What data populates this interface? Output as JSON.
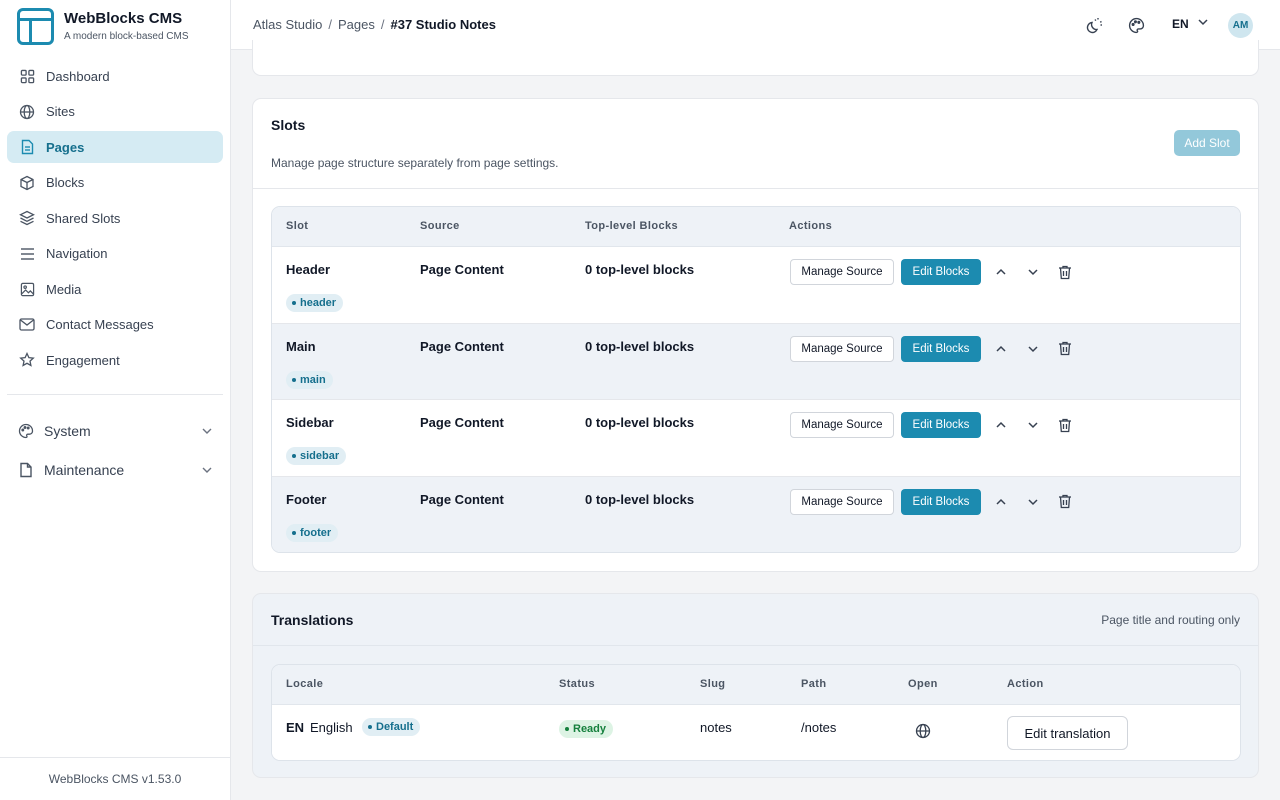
{
  "brand": {
    "title": "WebBlocks CMS",
    "subtitle": "A modern block-based CMS"
  },
  "sidebar": {
    "items": [
      {
        "label": "Dashboard",
        "icon": "dashboard-icon"
      },
      {
        "label": "Sites",
        "icon": "globe-icon"
      },
      {
        "label": "Pages",
        "icon": "document-icon",
        "active": true
      },
      {
        "label": "Blocks",
        "icon": "cube-icon"
      },
      {
        "label": "Shared Slots",
        "icon": "layers-icon"
      },
      {
        "label": "Navigation",
        "icon": "menu-icon"
      },
      {
        "label": "Media",
        "icon": "image-icon"
      },
      {
        "label": "Contact Messages",
        "icon": "mail-icon"
      },
      {
        "label": "Engagement",
        "icon": "star-icon"
      }
    ],
    "groups": [
      {
        "label": "System",
        "icon": "palette-icon"
      },
      {
        "label": "Maintenance",
        "icon": "file-icon"
      }
    ],
    "version": "WebBlocks CMS v1.53.0"
  },
  "topbar": {
    "breadcrumb": [
      "Atlas Studio",
      "Pages",
      "#37 Studio Notes"
    ],
    "language": "EN",
    "avatar_initials": "AM"
  },
  "slots": {
    "title": "Slots",
    "subtitle": "Manage page structure separately from page settings.",
    "add_label": "Add Slot",
    "columns": [
      "Slot",
      "Source",
      "Top-level Blocks",
      "Actions"
    ],
    "manage_label": "Manage Source",
    "edit_label": "Edit Blocks",
    "rows": [
      {
        "name": "Header",
        "tag": "header",
        "source": "Page Content",
        "blocks": "0 top-level blocks"
      },
      {
        "name": "Main",
        "tag": "main",
        "source": "Page Content",
        "blocks": "0 top-level blocks"
      },
      {
        "name": "Sidebar",
        "tag": "sidebar",
        "source": "Page Content",
        "blocks": "0 top-level blocks"
      },
      {
        "name": "Footer",
        "tag": "footer",
        "source": "Page Content",
        "blocks": "0 top-level blocks"
      }
    ]
  },
  "translations": {
    "title": "Translations",
    "note": "Page title and routing only",
    "columns": [
      "Locale",
      "Status",
      "Slug",
      "Path",
      "Open",
      "Action"
    ],
    "rows": [
      {
        "code": "EN",
        "name": "English",
        "default_label": "Default",
        "status": "Ready",
        "slug": "notes",
        "path": "/notes",
        "action": "Edit translation"
      }
    ]
  },
  "colors": {
    "accent": "#1c8bb0",
    "accent_light": "#d5ebf3",
    "success": "#15803d"
  }
}
